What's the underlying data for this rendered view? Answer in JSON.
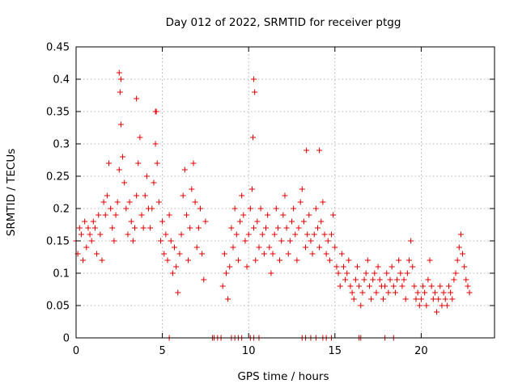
{
  "chart_data": {
    "type": "scatter",
    "title": "Day 012 of 2022, SRMTID for receiver ptgg",
    "xlabel": "GPS time / hours",
    "ylabel": "SRMTID / TECUs",
    "xlim": [
      0,
      24.25
    ],
    "ylim": [
      0,
      0.45
    ],
    "xticks": [
      0,
      5,
      10,
      15,
      20
    ],
    "xtick_labels": [
      "0",
      "5",
      "10",
      "15",
      "20"
    ],
    "yticks": [
      0,
      0.05,
      0.1,
      0.15,
      0.2,
      0.25,
      0.3,
      0.35,
      0.4,
      0.45
    ],
    "ytick_labels": [
      "0",
      "0.05",
      "0.1",
      "0.15",
      "0.2",
      "0.25",
      "0.3",
      "0.35",
      "0.4",
      "0.45"
    ],
    "grid": true,
    "marker": "+",
    "color": "#e00000",
    "series": [
      {
        "name": "SRMTID",
        "x": [
          0.0,
          0.1,
          0.2,
          0.3,
          0.4,
          0.5,
          0.6,
          0.7,
          0.8,
          0.9,
          1.0,
          1.1,
          1.2,
          1.3,
          1.4,
          1.5,
          1.6,
          1.7,
          1.8,
          1.9,
          2.0,
          2.1,
          2.2,
          2.3,
          2.4,
          2.5,
          2.6,
          2.7,
          2.8,
          2.9,
          3.0,
          3.1,
          3.2,
          3.3,
          3.4,
          3.5,
          3.6,
          3.7,
          3.8,
          3.9,
          4.0,
          4.1,
          4.2,
          4.3,
          4.4,
          4.5,
          4.6,
          4.7,
          4.8,
          4.9,
          5.0,
          5.1,
          5.2,
          5.3,
          5.4,
          5.5,
          5.6,
          5.7,
          5.8,
          5.9,
          6.0,
          6.1,
          6.2,
          6.3,
          6.4,
          6.5,
          6.6,
          6.7,
          6.8,
          6.9,
          7.0,
          7.1,
          7.2,
          7.3,
          7.4,
          7.5,
          8.5,
          8.6,
          8.7,
          8.8,
          8.9,
          9.0,
          9.1,
          9.2,
          9.3,
          9.4,
          9.5,
          9.6,
          9.7,
          9.8,
          9.9,
          10.0,
          10.1,
          10.2,
          10.3,
          10.4,
          10.5,
          10.6,
          10.7,
          10.8,
          10.9,
          11.0,
          11.1,
          11.2,
          11.3,
          11.4,
          11.5,
          11.6,
          11.7,
          11.8,
          11.9,
          12.0,
          12.1,
          12.2,
          12.3,
          12.4,
          12.5,
          12.6,
          12.7,
          12.8,
          12.9,
          13.0,
          13.1,
          13.2,
          13.3,
          13.4,
          13.5,
          13.6,
          13.7,
          13.8,
          13.9,
          14.0,
          14.1,
          14.2,
          14.3,
          14.4,
          14.5,
          14.6,
          14.7,
          14.8,
          14.9,
          15.0,
          15.1,
          15.2,
          15.3,
          15.4,
          15.5,
          15.6,
          15.7,
          15.8,
          15.9,
          16.0,
          16.1,
          16.2,
          16.3,
          16.4,
          16.5,
          16.6,
          16.7,
          16.8,
          16.9,
          17.0,
          17.1,
          17.2,
          17.3,
          17.4,
          17.5,
          17.6,
          17.7,
          17.8,
          17.9,
          18.0,
          18.1,
          18.2,
          18.3,
          18.4,
          18.5,
          18.6,
          18.7,
          18.8,
          18.9,
          19.0,
          19.1,
          19.2,
          19.3,
          19.4,
          19.5,
          19.6,
          19.7,
          19.8,
          19.9,
          20.0,
          20.1,
          20.2,
          20.3,
          20.4,
          20.5,
          20.6,
          20.7,
          20.8,
          20.9,
          21.0,
          21.1,
          21.2,
          21.3,
          21.4,
          21.5,
          21.6,
          21.7,
          21.8,
          21.9,
          22.0,
          22.1,
          22.2,
          22.3,
          22.4,
          22.5,
          22.6,
          22.7,
          22.8,
          2.5,
          2.6,
          2.55,
          3.5,
          4.6,
          4.65,
          10.3,
          10.35,
          10.25,
          13.35,
          14.1,
          5.4,
          7.9,
          8.0,
          8.2,
          8.4,
          9.0,
          9.2,
          9.4,
          9.6,
          10.1,
          10.3,
          10.6,
          13.1,
          13.3,
          13.6,
          13.9,
          14.3,
          14.5,
          14.8,
          16.4,
          16.5,
          17.9,
          18.4
        ],
        "y": [
          0.15,
          0.13,
          0.17,
          0.16,
          0.12,
          0.18,
          0.14,
          0.17,
          0.16,
          0.15,
          0.18,
          0.17,
          0.13,
          0.19,
          0.16,
          0.12,
          0.21,
          0.19,
          0.22,
          0.27,
          0.2,
          0.17,
          0.15,
          0.19,
          0.21,
          0.26,
          0.33,
          0.28,
          0.24,
          0.2,
          0.16,
          0.21,
          0.18,
          0.15,
          0.17,
          0.22,
          0.27,
          0.31,
          0.19,
          0.17,
          0.22,
          0.25,
          0.2,
          0.17,
          0.2,
          0.24,
          0.3,
          0.27,
          0.21,
          0.15,
          0.18,
          0.13,
          0.16,
          0.12,
          0.19,
          0.15,
          0.1,
          0.14,
          0.11,
          0.07,
          0.13,
          0.16,
          0.22,
          0.26,
          0.19,
          0.12,
          0.17,
          0.23,
          0.27,
          0.21,
          0.14,
          0.17,
          0.2,
          0.13,
          0.09,
          0.18,
          0.08,
          0.13,
          0.1,
          0.06,
          0.11,
          0.17,
          0.14,
          0.2,
          0.16,
          0.12,
          0.18,
          0.22,
          0.19,
          0.15,
          0.11,
          0.16,
          0.2,
          0.23,
          0.17,
          0.12,
          0.18,
          0.14,
          0.2,
          0.16,
          0.13,
          0.17,
          0.19,
          0.14,
          0.1,
          0.13,
          0.16,
          0.2,
          0.17,
          0.12,
          0.15,
          0.19,
          0.22,
          0.17,
          0.13,
          0.15,
          0.18,
          0.2,
          0.16,
          0.12,
          0.17,
          0.21,
          0.23,
          0.18,
          0.14,
          0.16,
          0.19,
          0.15,
          0.13,
          0.16,
          0.2,
          0.17,
          0.14,
          0.18,
          0.21,
          0.16,
          0.13,
          0.15,
          0.12,
          0.16,
          0.19,
          0.14,
          0.11,
          0.1,
          0.08,
          0.13,
          0.11,
          0.09,
          0.1,
          0.12,
          0.08,
          0.07,
          0.06,
          0.09,
          0.11,
          0.08,
          0.05,
          0.07,
          0.09,
          0.1,
          0.12,
          0.08,
          0.06,
          0.09,
          0.1,
          0.07,
          0.11,
          0.09,
          0.08,
          0.06,
          0.08,
          0.1,
          0.07,
          0.09,
          0.11,
          0.08,
          0.07,
          0.09,
          0.12,
          0.1,
          0.08,
          0.09,
          0.06,
          0.1,
          0.12,
          0.15,
          0.11,
          0.08,
          0.06,
          0.07,
          0.05,
          0.06,
          0.08,
          0.07,
          0.05,
          0.09,
          0.12,
          0.08,
          0.06,
          0.07,
          0.04,
          0.06,
          0.08,
          0.05,
          0.07,
          0.06,
          0.05,
          0.08,
          0.07,
          0.06,
          0.09,
          0.1,
          0.12,
          0.14,
          0.16,
          0.13,
          0.11,
          0.09,
          0.08,
          0.07,
          0.41,
          0.4,
          0.38,
          0.37,
          0.35,
          0.35,
          0.4,
          0.38,
          0.31,
          0.29,
          0.29,
          0,
          0,
          0,
          0,
          0,
          0,
          0,
          0,
          0,
          0,
          0,
          0,
          0,
          0,
          0,
          0,
          0,
          0,
          0,
          0,
          0,
          0,
          0
        ]
      }
    ]
  }
}
